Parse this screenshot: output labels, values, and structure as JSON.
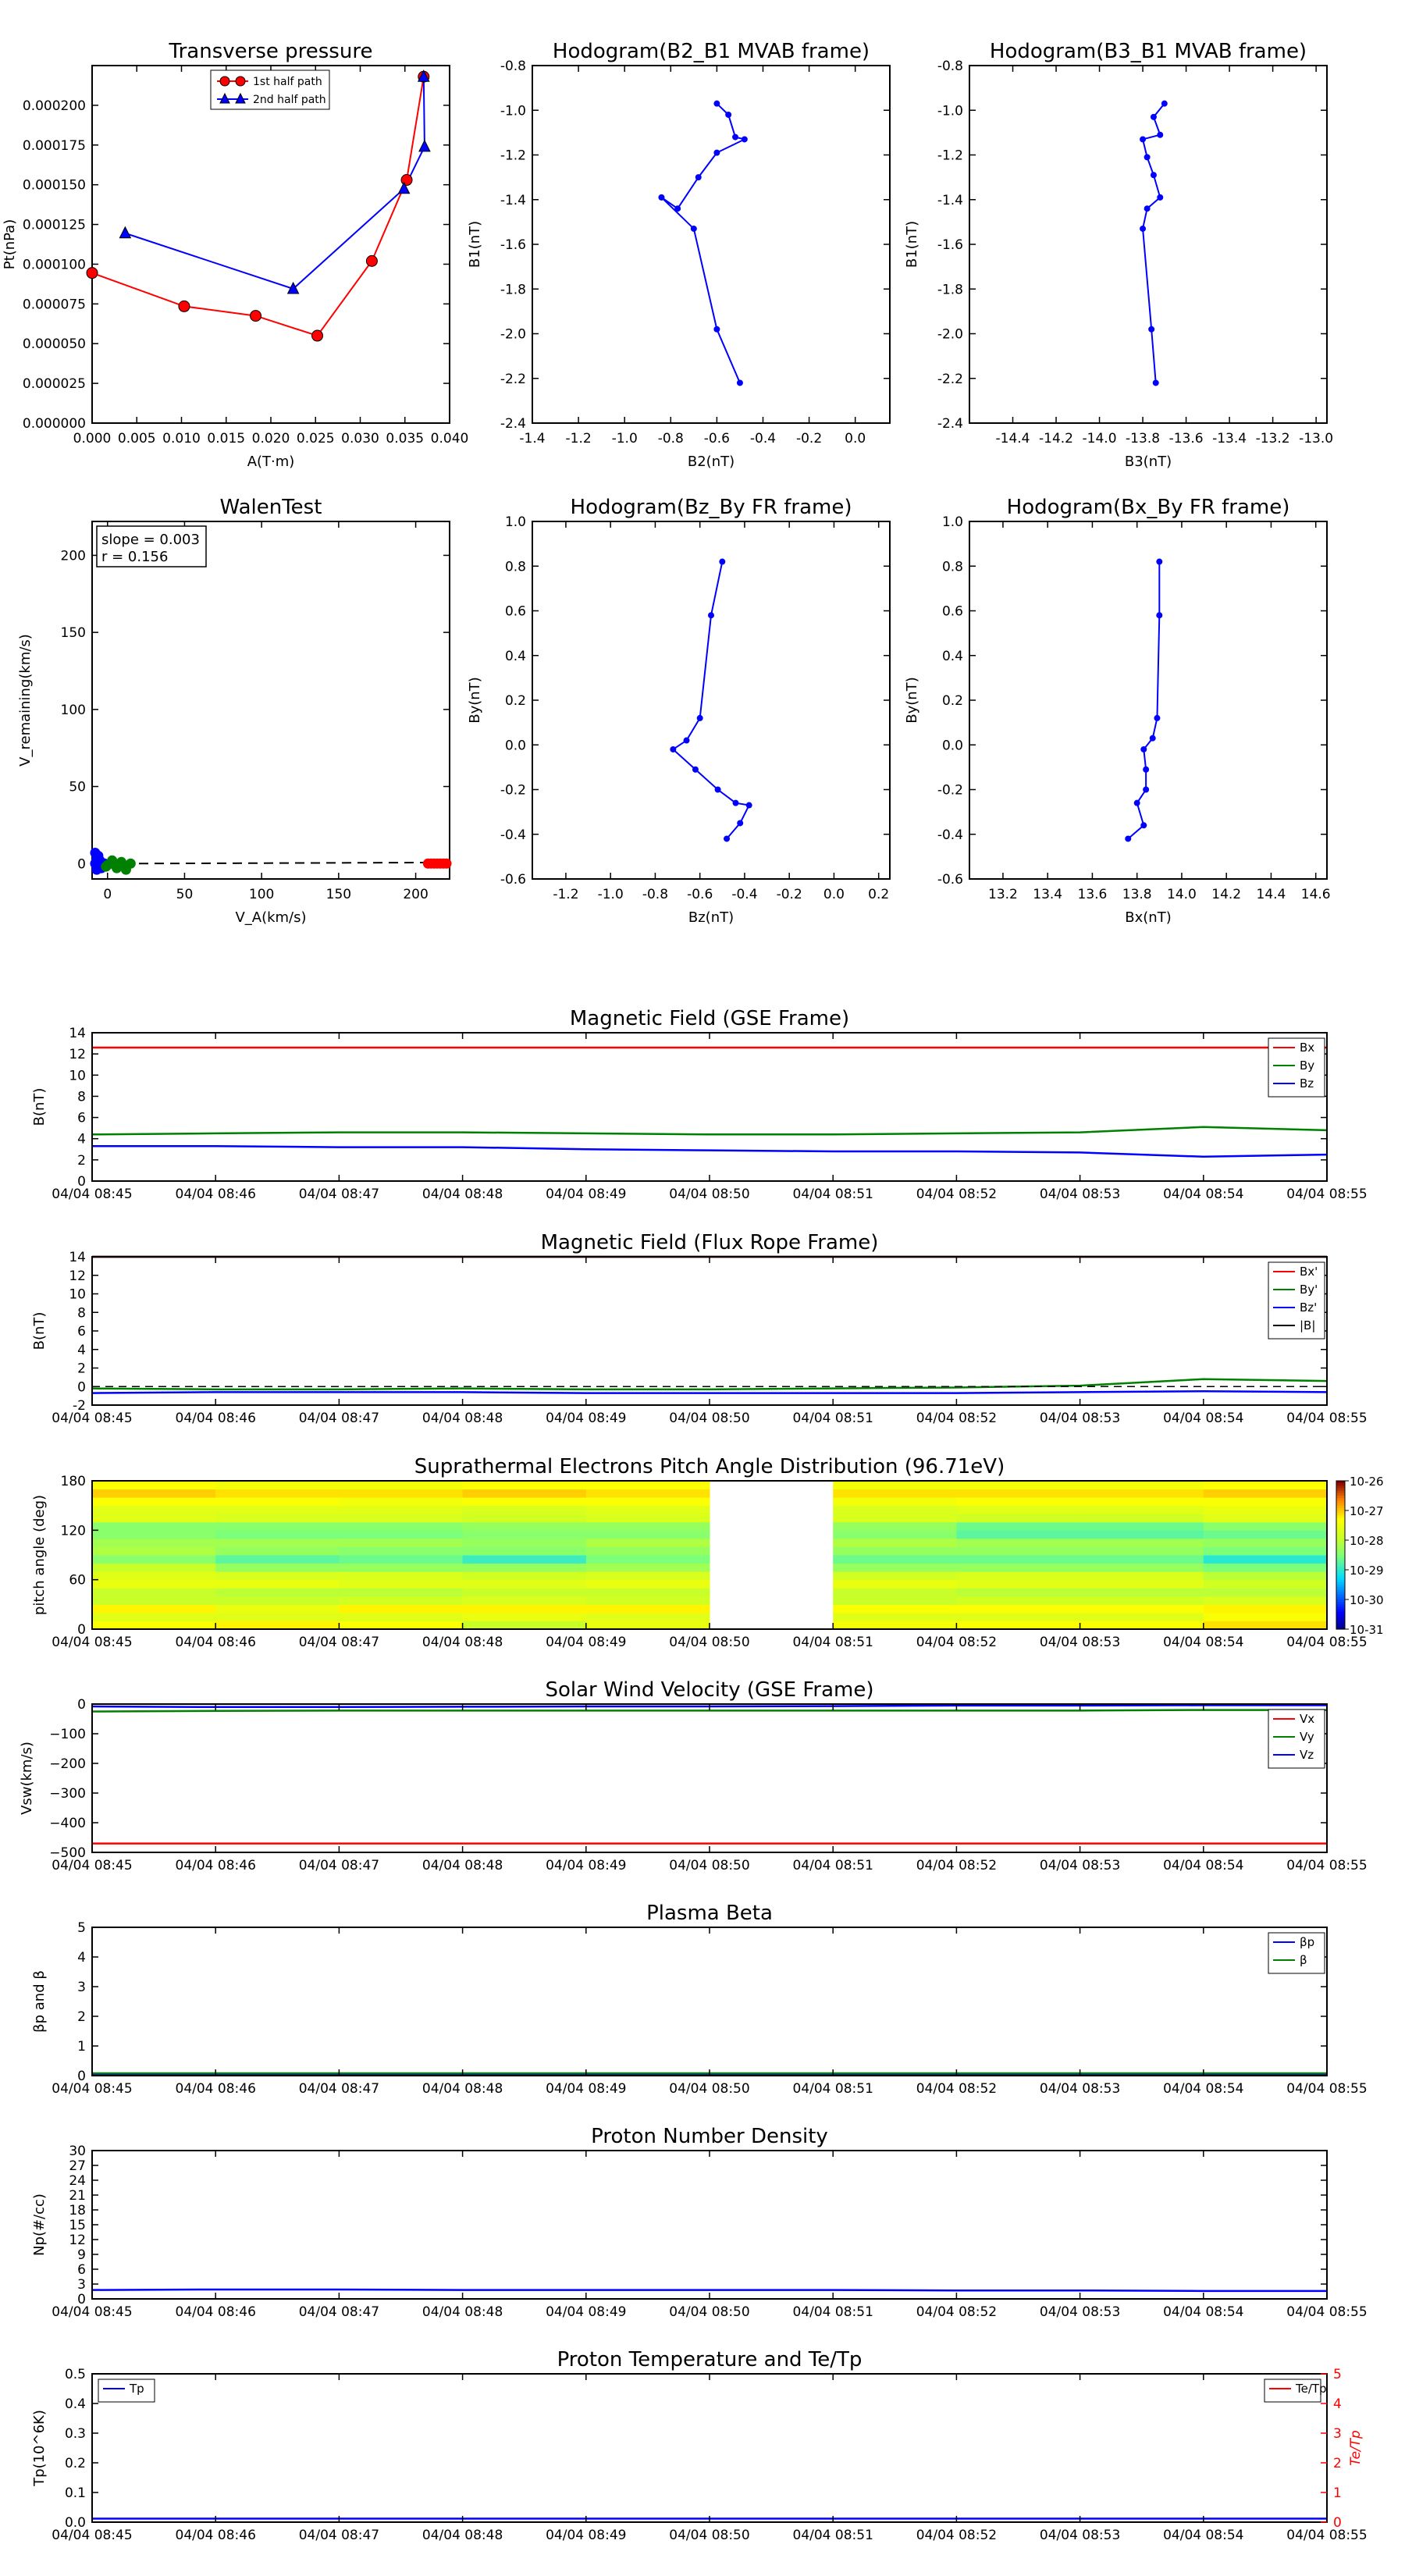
{
  "time_ticks": [
    "04/04 08:45",
    "04/04 08:46",
    "04/04 08:47",
    "04/04 08:48",
    "04/04 08:49",
    "04/04 08:50",
    "04/04 08:51",
    "04/04 08:52",
    "04/04 08:53",
    "04/04 08:54",
    "04/04 08:55"
  ],
  "colors": {
    "red": "#ff0000",
    "green": "#008000",
    "blue": "#0000ff",
    "black": "#000000"
  },
  "chart_data": [
    {
      "id": "transverse",
      "type": "line",
      "title": "Transverse pressure",
      "xlabel": "A(T·m)",
      "ylabel": "Pt(nPa)",
      "xlim": [
        0.0,
        0.04
      ],
      "ylim": [
        0.0,
        0.000225
      ],
      "xticks": [
        "0.000",
        "0.005",
        "0.010",
        "0.015",
        "0.020",
        "0.025",
        "0.030",
        "0.035",
        "0.040"
      ],
      "yticks": [
        "0.000000",
        "0.000025",
        "0.000050",
        "0.000075",
        "0.000100",
        "0.000125",
        "0.000150",
        "0.000175",
        "0.000200"
      ],
      "legend": {
        "placement": "top-center",
        "entries": [
          "1st half path",
          "2nd half path"
        ]
      },
      "series": [
        {
          "name": "1st half path",
          "color": "#ff0000",
          "marker": "circle",
          "x": [
            0.0,
            0.0103,
            0.0183,
            0.0252,
            0.0313,
            0.0352,
            0.0371
          ],
          "y": [
            9.45e-05,
            7.35e-05,
            6.75e-05,
            5.5e-05,
            0.000102,
            0.000153,
            0.000218
          ]
        },
        {
          "name": "2nd half path",
          "color": "#0000ff",
          "marker": "triangle",
          "x": [
            0.0037,
            0.0225,
            0.0349,
            0.0372,
            0.0371
          ],
          "y": [
            0.0001195,
            8.45e-05,
            0.0001475,
            0.000174,
            0.000218
          ]
        }
      ]
    },
    {
      "id": "hodo_b2b1",
      "type": "line",
      "title": "Hodogram(B2_B1 MVAB frame)",
      "xlabel": "B2(nT)",
      "ylabel": "B1(nT)",
      "xlim": [
        -1.4,
        0.15
      ],
      "ylim": [
        -2.4,
        -0.8
      ],
      "xticks": [
        "-1.4",
        "-1.2",
        "-1.0",
        "-0.8",
        "-0.6",
        "-0.4",
        "-0.2",
        "0.0"
      ],
      "yticks": [
        "-2.4",
        "-2.2",
        "-2.0",
        "-1.8",
        "-1.6",
        "-1.4",
        "-1.2",
        "-1.0",
        "-0.8"
      ],
      "series": [
        {
          "color": "#0000ff",
          "x": [
            -0.6,
            -0.55,
            -0.52,
            -0.48,
            -0.6,
            -0.68,
            -0.77,
            -0.84,
            -0.7,
            -0.6,
            -0.5
          ],
          "y": [
            -0.97,
            -1.02,
            -1.12,
            -1.13,
            -1.19,
            -1.3,
            -1.44,
            -1.39,
            -1.53,
            -1.98,
            -2.22
          ]
        }
      ]
    },
    {
      "id": "hodo_b3b1",
      "type": "line",
      "title": "Hodogram(B3_B1 MVAB frame)",
      "xlabel": "B3(nT)",
      "ylabel": "B1(nT)",
      "xlim": [
        -14.6,
        -12.95
      ],
      "ylim": [
        -2.4,
        -0.8
      ],
      "xticks": [
        "-14.4",
        "-14.2",
        "-14.0",
        "-13.8",
        "-13.6",
        "-13.4",
        "-13.2",
        "-13.0"
      ],
      "yticks": [
        "-2.4",
        "-2.2",
        "-2.0",
        "-1.8",
        "-1.6",
        "-1.4",
        "-1.2",
        "-1.0",
        "-0.8"
      ],
      "series": [
        {
          "color": "#0000ff",
          "x": [
            -13.7,
            -13.75,
            -13.72,
            -13.8,
            -13.78,
            -13.75,
            -13.72,
            -13.78,
            -13.8,
            -13.76,
            -13.74
          ],
          "y": [
            -0.97,
            -1.03,
            -1.11,
            -1.13,
            -1.21,
            -1.29,
            -1.39,
            -1.44,
            -1.53,
            -1.98,
            -2.22
          ]
        }
      ]
    },
    {
      "id": "walen",
      "type": "scatter",
      "title": "WalenTest",
      "xlabel": "V_A(km/s)",
      "ylabel": "V_remaining(km/s)",
      "xlim": [
        -10,
        222
      ],
      "ylim": [
        -10,
        222
      ],
      "xticks": [
        "0",
        "50",
        "100",
        "150",
        "200"
      ],
      "yticks": [
        "0",
        "50",
        "100",
        "150",
        "200"
      ],
      "annotation": [
        "slope = 0.003",
        "r = 0.156"
      ],
      "fit_line": {
        "x": [
          -10,
          222
        ],
        "y": [
          -0.1,
          0.7
        ]
      },
      "series": [
        {
          "color": "#0000ff",
          "x": [
            -8,
            -7,
            -6,
            -5,
            -7,
            -8,
            -6,
            -4,
            -5,
            -3,
            -7,
            -2
          ],
          "y": [
            7,
            3,
            -2,
            1,
            -4,
            0,
            5,
            -3,
            2,
            -1,
            -2,
            0
          ]
        },
        {
          "color": "#008000",
          "x": [
            0,
            3,
            6,
            9,
            12,
            15,
            -1,
            2
          ],
          "y": [
            -1,
            2,
            -3,
            1,
            -4,
            0,
            -2,
            0
          ]
        },
        {
          "color": "#ff0000",
          "x": [
            208,
            210,
            212,
            214,
            216,
            218,
            220
          ],
          "y": [
            0,
            0,
            0,
            0,
            0,
            0,
            0
          ]
        }
      ]
    },
    {
      "id": "hodo_bzby",
      "type": "line",
      "title": "Hodogram(Bz_By FR frame)",
      "xlabel": "Bz(nT)",
      "ylabel": "By(nT)",
      "xlim": [
        -1.35,
        0.25
      ],
      "ylim": [
        -0.6,
        1.0
      ],
      "xticks": [
        "-1.2",
        "-1.0",
        "-0.8",
        "-0.6",
        "-0.4",
        "-0.2",
        "0.0",
        "0.2"
      ],
      "yticks": [
        "-0.6",
        "-0.4",
        "-0.2",
        "0.0",
        "0.2",
        "0.4",
        "0.6",
        "0.8",
        "1.0"
      ],
      "series": [
        {
          "color": "#0000ff",
          "x": [
            -0.5,
            -0.55,
            -0.6,
            -0.66,
            -0.72,
            -0.62,
            -0.52,
            -0.44,
            -0.38,
            -0.42,
            -0.48
          ],
          "y": [
            0.82,
            0.58,
            0.12,
            0.02,
            -0.02,
            -0.11,
            -0.2,
            -0.26,
            -0.27,
            -0.35,
            -0.42
          ]
        }
      ]
    },
    {
      "id": "hodo_bxby",
      "type": "line",
      "title": "Hodogram(Bx_By FR frame)",
      "xlabel": "Bx(nT)",
      "ylabel": "By(nT)",
      "xlim": [
        13.05,
        14.65
      ],
      "ylim": [
        -0.6,
        1.0
      ],
      "xticks": [
        "13.2",
        "13.4",
        "13.6",
        "13.8",
        "14.0",
        "14.2",
        "14.4",
        "14.6"
      ],
      "yticks": [
        "-0.6",
        "-0.4",
        "-0.2",
        "0.0",
        "0.2",
        "0.4",
        "0.6",
        "0.8",
        "1.0"
      ],
      "series": [
        {
          "color": "#0000ff",
          "x": [
            13.9,
            13.9,
            13.89,
            13.87,
            13.83,
            13.84,
            13.84,
            13.8,
            13.83,
            13.76
          ],
          "y": [
            0.82,
            0.58,
            0.12,
            0.03,
            -0.02,
            -0.11,
            -0.2,
            -0.26,
            -0.36,
            -0.42
          ]
        }
      ]
    },
    {
      "id": "mag_gse",
      "type": "line",
      "title": "Magnetic Field (GSE Frame)",
      "ylabel": "B(nT)",
      "ylim": [
        0,
        14
      ],
      "yticks": [
        "0",
        "2",
        "4",
        "6",
        "8",
        "10",
        "12",
        "14"
      ],
      "legend": {
        "placement": "right",
        "entries": [
          "Bx",
          "By",
          "Bz"
        ]
      },
      "series": [
        {
          "name": "Bx",
          "color": "#ff0000",
          "values": [
            12.6,
            12.6,
            12.6,
            12.6,
            12.6,
            12.6,
            12.6,
            12.6,
            12.6,
            12.6,
            12.6
          ]
        },
        {
          "name": "By",
          "color": "#008000",
          "values": [
            4.4,
            4.5,
            4.6,
            4.6,
            4.5,
            4.4,
            4.4,
            4.5,
            4.6,
            5.1,
            4.8
          ]
        },
        {
          "name": "Bz",
          "color": "#0000ff",
          "values": [
            3.3,
            3.3,
            3.2,
            3.2,
            3.0,
            2.9,
            2.8,
            2.8,
            2.7,
            2.3,
            2.5
          ]
        }
      ]
    },
    {
      "id": "mag_fr",
      "type": "line",
      "title": "Magnetic Field (Flux Rope Frame)",
      "ylabel": "B(nT)",
      "ylim": [
        -2,
        14
      ],
      "yticks": [
        "-2",
        "0",
        "2",
        "4",
        "6",
        "8",
        "10",
        "12",
        "14"
      ],
      "legend": {
        "placement": "right",
        "entries": [
          "Bx'",
          "By'",
          "Bz'",
          "|B|"
        ]
      },
      "series": [
        {
          "name": "Bx'",
          "color": "#ff0000",
          "values": [
            14.0,
            14.0,
            14.0,
            14.0,
            14.0,
            14.0,
            14.0,
            14.0,
            14.0,
            14.0,
            14.0
          ]
        },
        {
          "name": "By'",
          "color": "#008000",
          "values": [
            -0.2,
            -0.3,
            -0.3,
            -0.2,
            -0.3,
            -0.3,
            -0.2,
            -0.1,
            0.1,
            0.8,
            0.6
          ]
        },
        {
          "name": "Bz'",
          "color": "#0000ff",
          "values": [
            -0.7,
            -0.6,
            -0.6,
            -0.6,
            -0.7,
            -0.7,
            -0.7,
            -0.7,
            -0.6,
            -0.5,
            -0.6
          ]
        },
        {
          "name": "|B|",
          "color": "#000000",
          "values": [
            14.1,
            14.1,
            14.1,
            14.1,
            14.1,
            14.1,
            14.1,
            14.1,
            14.1,
            14.1,
            14.1
          ]
        }
      ]
    },
    {
      "id": "pad",
      "type": "heatmap",
      "title": "Suprathermal Electrons Pitch Angle Distribution (96.71eV)",
      "ylabel": "pitch angle (deg)",
      "ylim": [
        0,
        180
      ],
      "yticks": [
        "0",
        "60",
        "120",
        "180"
      ],
      "colorbar": {
        "ticks": [
          "10^-31",
          "10^-30",
          "10^-29",
          "10^-28",
          "10^-27",
          "10^-26"
        ],
        "range": [
          -31,
          -26
        ]
      },
      "time_bins": 10,
      "pitch_bins": 18,
      "missing_time_bins": [
        5
      ],
      "log_values": [
        [
          -27.3,
          -27.6,
          -27.2,
          -27.9,
          -27.9,
          -27.5,
          -27.6,
          -27.9,
          -28.4,
          -28.1,
          -28.2,
          -28.4,
          -28.4,
          -27.6,
          -27.6,
          -27.3,
          -27.0,
          -27.3
        ],
        [
          -27.2,
          -27.6,
          -27.5,
          -27.9,
          -28.0,
          -27.5,
          -27.7,
          -28.3,
          -28.7,
          -28.3,
          -28.2,
          -28.5,
          -28.4,
          -27.7,
          -27.6,
          -27.3,
          -27.1,
          -27.4
        ],
        [
          -27.3,
          -27.6,
          -27.2,
          -27.8,
          -28.0,
          -27.6,
          -27.7,
          -28.3,
          -28.6,
          -28.4,
          -28.2,
          -28.5,
          -28.4,
          -27.7,
          -27.6,
          -27.4,
          -27.1,
          -27.4
        ],
        [
          -27.9,
          -27.5,
          -27.2,
          -27.7,
          -27.9,
          -27.6,
          -27.8,
          -28.3,
          -28.9,
          -28.4,
          -28.3,
          -28.4,
          -28.3,
          -27.8,
          -27.7,
          -27.3,
          -27.0,
          -27.3
        ],
        [
          -27.5,
          -27.6,
          -27.2,
          -27.8,
          -27.9,
          -27.5,
          -27.7,
          -28.2,
          -28.5,
          -28.3,
          -28.1,
          -28.4,
          -28.3,
          -27.7,
          -27.6,
          -27.3,
          -27.1,
          -27.3
        ],
        [],
        [
          -27.4,
          -27.6,
          -27.3,
          -27.9,
          -27.9,
          -27.5,
          -27.8,
          -28.3,
          -28.6,
          -28.3,
          -28.1,
          -28.4,
          -28.3,
          -27.7,
          -27.7,
          -27.4,
          -27.1,
          -27.4
        ],
        [
          -27.3,
          -27.6,
          -27.3,
          -27.8,
          -28.0,
          -27.6,
          -27.7,
          -28.3,
          -28.6,
          -28.3,
          -28.2,
          -28.7,
          -28.6,
          -27.8,
          -27.6,
          -27.3,
          -27.1,
          -27.4
        ],
        [
          -27.3,
          -27.6,
          -27.3,
          -27.8,
          -28.0,
          -27.6,
          -27.7,
          -28.3,
          -28.6,
          -28.3,
          -28.2,
          -28.7,
          -28.6,
          -27.8,
          -27.6,
          -27.3,
          -27.1,
          -27.4
        ],
        [
          -27.1,
          -27.3,
          -27.2,
          -27.7,
          -28.0,
          -27.8,
          -28.0,
          -28.5,
          -29.0,
          -28.5,
          -28.3,
          -28.6,
          -28.4,
          -27.6,
          -27.5,
          -27.3,
          -27.0,
          -27.3
        ]
      ]
    },
    {
      "id": "vsw",
      "type": "line",
      "title": "Solar Wind Velocity (GSE Frame)",
      "ylabel": "Vsw(km/s)",
      "ylim": [
        -500,
        0
      ],
      "yticks": [
        "−500",
        "−400",
        "−300",
        "−200",
        "−100",
        "0"
      ],
      "legend": {
        "placement": "right",
        "entries": [
          "Vx",
          "Vy",
          "Vz"
        ]
      },
      "series": [
        {
          "name": "Vx",
          "color": "#ff0000",
          "values": [
            -470,
            -470,
            -470,
            -470,
            -470,
            -470,
            -470,
            -470,
            -470,
            -470,
            -470
          ]
        },
        {
          "name": "Vy",
          "color": "#008000",
          "values": [
            -25,
            -23,
            -22,
            -22,
            -22,
            -22,
            -22,
            -22,
            -22,
            -20,
            -20
          ]
        },
        {
          "name": "Vz",
          "color": "#0000ff",
          "values": [
            -8,
            -10,
            -10,
            -9,
            -8,
            -8,
            -7,
            -5,
            -5,
            -4,
            -4
          ]
        }
      ]
    },
    {
      "id": "beta",
      "type": "line",
      "title": "Plasma Beta",
      "ylabel": "βp and β",
      "ylim": [
        0,
        5
      ],
      "yticks": [
        "0",
        "1",
        "2",
        "3",
        "4",
        "5"
      ],
      "legend": {
        "placement": "top-right",
        "entries": [
          "βp",
          "β"
        ]
      },
      "series": [
        {
          "name": "βp",
          "color": "#0000ff",
          "values": [
            0.04,
            0.04,
            0.04,
            0.04,
            0.04,
            0.04,
            0.04,
            0.04,
            0.04,
            0.04,
            0.04
          ]
        },
        {
          "name": "β",
          "color": "#008000",
          "values": [
            0.08,
            0.08,
            0.08,
            0.08,
            0.08,
            0.08,
            0.08,
            0.08,
            0.08,
            0.08,
            0.08
          ]
        }
      ]
    },
    {
      "id": "np",
      "type": "line",
      "title": "Proton Number Density",
      "ylabel": "Np(#/cc)",
      "ylim": [
        0,
        30
      ],
      "yticks": [
        "0",
        "3",
        "6",
        "9",
        "12",
        "15",
        "18",
        "21",
        "24",
        "27",
        "30"
      ],
      "series": [
        {
          "name": "Np",
          "color": "#0000ff",
          "values": [
            1.8,
            1.9,
            1.9,
            1.8,
            1.8,
            1.8,
            1.8,
            1.7,
            1.7,
            1.6,
            1.6
          ]
        }
      ]
    },
    {
      "id": "tp",
      "type": "line",
      "title": "Proton Temperature and Te/Tp",
      "ylabel": "Tp(10^6K)",
      "ylabel_right": "Te/Tp",
      "ylim": [
        0,
        0.5
      ],
      "ylim_right": [
        0,
        5
      ],
      "yticks": [
        "0.0",
        "0.1",
        "0.2",
        "0.3",
        "0.4",
        "0.5"
      ],
      "yticks_right": [
        "0",
        "1",
        "2",
        "3",
        "4",
        "5"
      ],
      "legend_left": {
        "placement": "top-left",
        "entries": [
          "Tp"
        ]
      },
      "legend_right": {
        "placement": "top-right",
        "entries": [
          "Te/Tp"
        ]
      },
      "series": [
        {
          "name": "Tp",
          "color": "#0000ff",
          "values": [
            0.012,
            0.012,
            0.012,
            0.012,
            0.012,
            0.012,
            0.012,
            0.012,
            0.012,
            0.012,
            0.012
          ]
        }
      ]
    }
  ]
}
